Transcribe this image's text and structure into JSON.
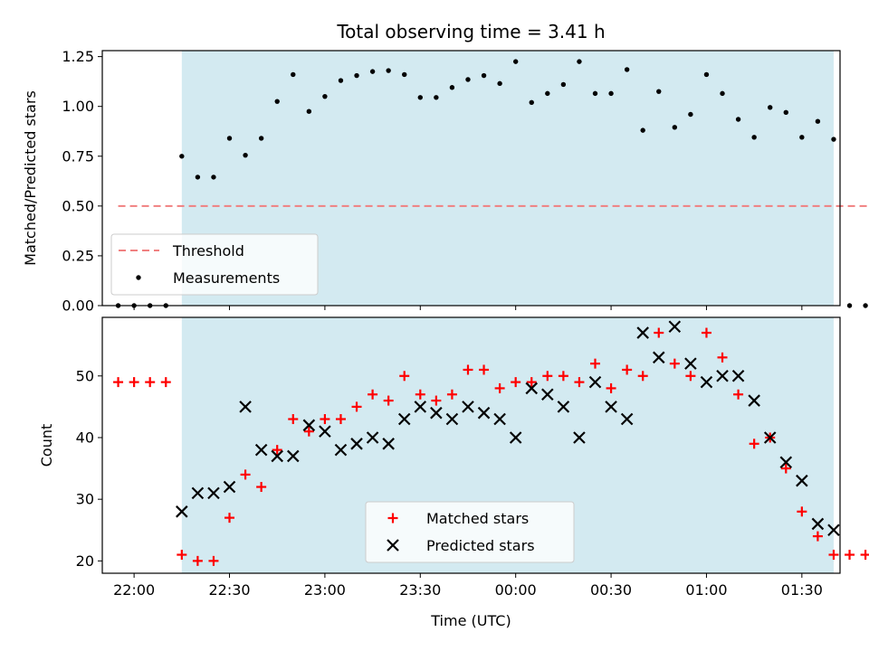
{
  "chart_data": [
    {
      "type": "scatter",
      "title": "Total observing time = 3.41 h",
      "ylabel": "Matched/Predicted stars",
      "xlabel": "",
      "ylim": [
        0,
        1.28
      ],
      "yticks": [
        "0.00",
        "0.25",
        "0.50",
        "0.75",
        "1.00",
        "1.25"
      ],
      "ytick_values": [
        0,
        0.25,
        0.5,
        0.75,
        1.0,
        1.25
      ],
      "xlim_min": -10,
      "xlim_max": 222,
      "xtick_min": [
        0,
        30,
        60,
        90,
        120,
        150,
        180,
        210,
        240
      ],
      "observing_window_min": [
        15,
        220
      ],
      "observing_window_color": "#d3eaf1",
      "threshold": {
        "label": "Threshold",
        "y": 0.5,
        "x_range_min": [
          -5,
          235
        ],
        "color": "#f08080"
      },
      "series": [
        {
          "name": "Measurements",
          "color": "#000000",
          "x_min": [
            -5,
            0,
            5,
            10,
            15,
            20,
            25,
            30,
            35,
            40,
            45,
            50,
            55,
            60,
            65,
            70,
            75,
            80,
            85,
            90,
            95,
            100,
            105,
            110,
            115,
            120,
            125,
            130,
            135,
            140,
            145,
            150,
            155,
            160,
            165,
            170,
            175,
            180,
            185,
            190,
            195,
            200,
            205,
            210,
            215,
            220,
            225,
            230,
            235
          ],
          "values": [
            0,
            0,
            0,
            0,
            0.75,
            0.645,
            0.645,
            0.84,
            0.755,
            0.84,
            1.025,
            1.16,
            0.975,
            1.05,
            1.13,
            1.155,
            1.175,
            1.18,
            1.16,
            1.045,
            1.045,
            1.095,
            1.135,
            1.155,
            1.115,
            1.225,
            1.02,
            1.065,
            1.11,
            1.225,
            1.065,
            1.065,
            1.185,
            0.88,
            1.075,
            0.895,
            0.96,
            1.16,
            1.065,
            0.935,
            0.845,
            0.995,
            0.97,
            0.845,
            0.925,
            0.835,
            0,
            0,
            0
          ]
        }
      ]
    },
    {
      "type": "scatter",
      "title": "",
      "ylabel": "Count",
      "xlabel": "Time (UTC)",
      "ylim": [
        18,
        59.5
      ],
      "yticks": [
        "20",
        "30",
        "40",
        "50"
      ],
      "ytick_values": [
        20,
        30,
        40,
        50
      ],
      "xlim_min": -10,
      "xlim_max": 222,
      "xtick_min": [
        0,
        30,
        60,
        90,
        120,
        150,
        180,
        210,
        240
      ],
      "xticks": [
        "22:00",
        "22:30",
        "23:00",
        "23:30",
        "00:00",
        "00:30",
        "01:00",
        "01:30",
        "02:00"
      ],
      "observing_window_min": [
        15,
        220
      ],
      "observing_window_color": "#d3eaf1",
      "series": [
        {
          "name": "Matched stars",
          "marker": "+",
          "color": "#ff0000",
          "x_min": [
            -5,
            0,
            5,
            10,
            15,
            20,
            25,
            30,
            35,
            40,
            45,
            50,
            55,
            60,
            65,
            70,
            75,
            80,
            85,
            90,
            95,
            100,
            105,
            110,
            115,
            120,
            125,
            130,
            135,
            140,
            145,
            150,
            155,
            160,
            165,
            170,
            175,
            180,
            185,
            190,
            195,
            200,
            205,
            210,
            215,
            220,
            225,
            230,
            235
          ],
          "values": [
            49,
            49,
            49,
            49,
            21,
            20,
            20,
            27,
            34,
            32,
            38,
            43,
            41,
            43,
            43,
            45,
            47,
            46,
            50,
            47,
            46,
            47,
            51,
            51,
            48,
            49,
            49,
            50,
            50,
            49,
            52,
            48,
            51,
            50,
            57,
            52,
            50,
            57,
            53,
            47,
            39,
            40,
            35,
            28,
            24,
            21,
            21,
            21,
            21
          ]
        },
        {
          "name": "Predicted stars",
          "marker": "x",
          "color": "#000000",
          "x_min": [
            15,
            20,
            25,
            30,
            35,
            40,
            45,
            50,
            55,
            60,
            65,
            70,
            75,
            80,
            85,
            90,
            95,
            100,
            105,
            110,
            115,
            120,
            125,
            130,
            135,
            140,
            145,
            150,
            155,
            160,
            165,
            170,
            175,
            180,
            185,
            190,
            195,
            200,
            205,
            210,
            215,
            220
          ],
          "values": [
            28,
            31,
            31,
            32,
            45,
            38,
            37,
            37,
            42,
            41,
            38,
            39,
            40,
            39,
            43,
            45,
            44,
            43,
            45,
            44,
            43,
            40,
            48,
            47,
            45,
            40,
            49,
            45,
            43,
            57,
            53,
            58,
            52,
            49,
            50,
            50,
            46,
            40,
            36,
            33,
            26,
            25
          ]
        }
      ]
    }
  ]
}
